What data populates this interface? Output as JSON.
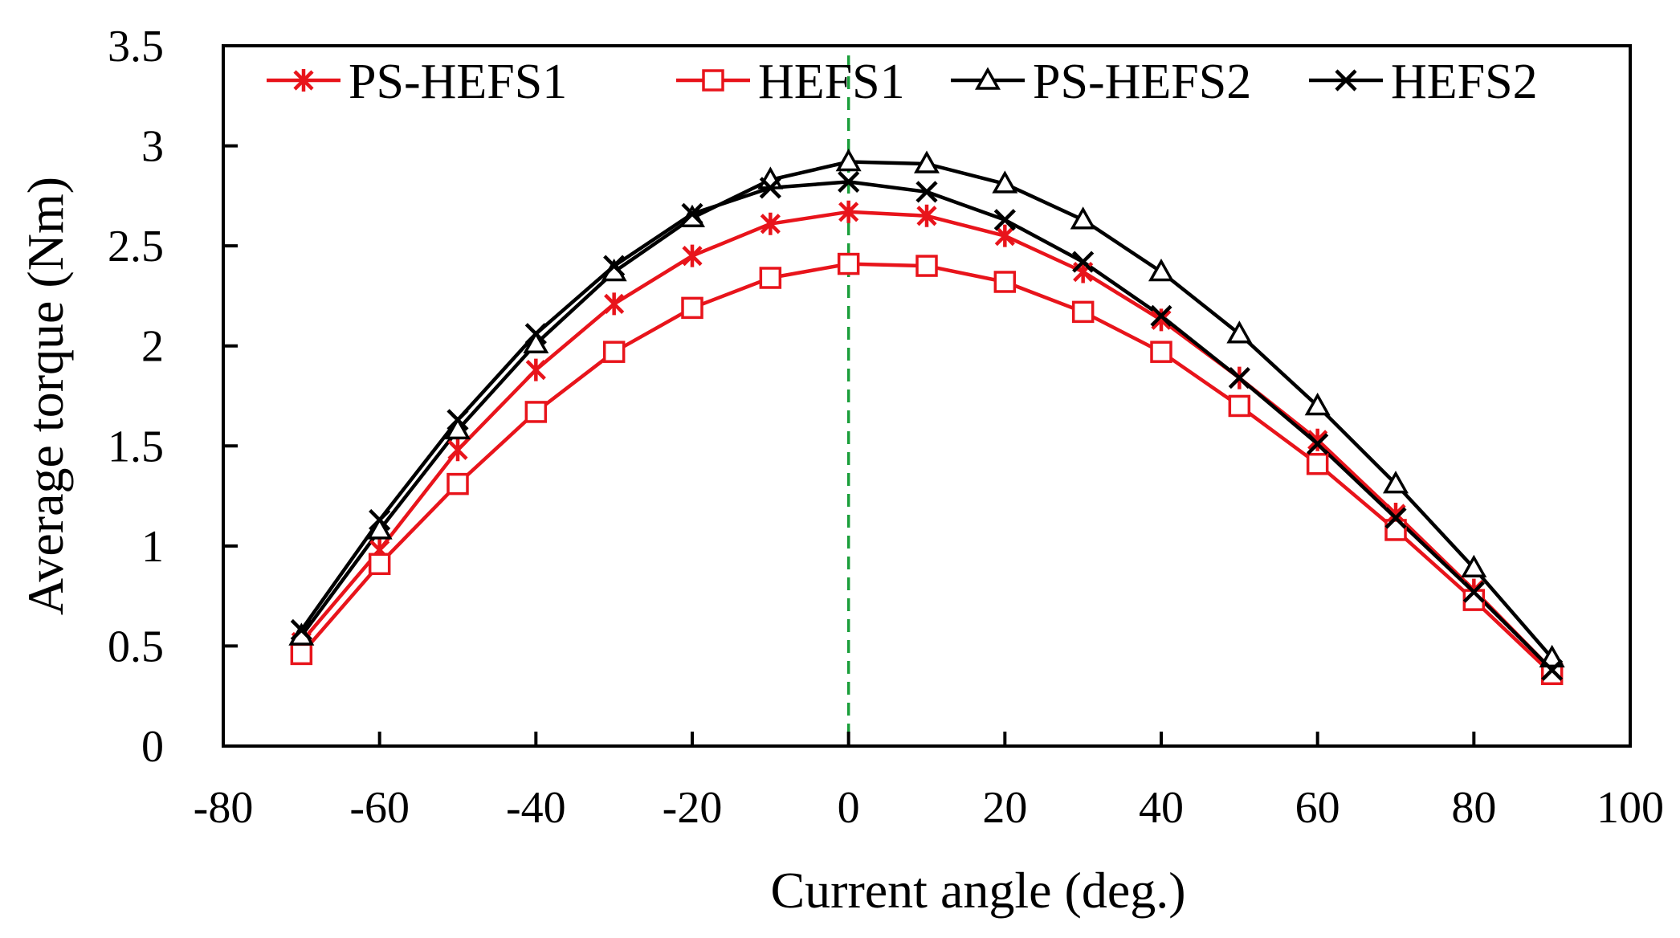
{
  "chart_data": {
    "type": "line",
    "title": "",
    "xlabel": "Current angle (deg.)",
    "ylabel": "Average torque (Nm)",
    "xlim": [
      -80,
      100
    ],
    "ylim": [
      0,
      3.5
    ],
    "x_ticks": [
      "-80",
      "-60",
      "-40",
      "-20",
      "0",
      "20",
      "40",
      "60",
      "80",
      "100"
    ],
    "y_ticks": [
      "0",
      "0.5",
      "1",
      "1.5",
      "2",
      "2.5",
      "3",
      "3.5"
    ],
    "grid": false,
    "legend_position": "top",
    "reference_line": {
      "x": 0,
      "style": "dashed",
      "color": "#1a9e3a"
    },
    "x": [
      -70,
      -60,
      -50,
      -40,
      -30,
      -20,
      -10,
      0,
      10,
      20,
      30,
      40,
      50,
      60,
      70,
      80,
      90
    ],
    "series": [
      {
        "name": "PS-HEFS1",
        "color": "#e8141b",
        "marker": "asterisk",
        "values": [
          0.52,
          0.98,
          1.48,
          1.88,
          2.21,
          2.45,
          2.61,
          2.67,
          2.65,
          2.55,
          2.37,
          2.13,
          1.84,
          1.53,
          1.16,
          0.78,
          0.38
        ]
      },
      {
        "name": "HEFS1",
        "color": "#e8141b",
        "marker": "square",
        "values": [
          0.46,
          0.91,
          1.31,
          1.67,
          1.97,
          2.19,
          2.34,
          2.41,
          2.4,
          2.32,
          2.17,
          1.97,
          1.7,
          1.41,
          1.08,
          0.73,
          0.36
        ]
      },
      {
        "name": "PS-HEFS2",
        "color": "#000000",
        "marker": "triangle",
        "values": [
          0.55,
          1.08,
          1.58,
          2.01,
          2.37,
          2.64,
          2.83,
          2.92,
          2.91,
          2.81,
          2.63,
          2.37,
          2.06,
          1.7,
          1.31,
          0.89,
          0.44
        ]
      },
      {
        "name": "HEFS2",
        "color": "#000000",
        "marker": "x",
        "values": [
          0.58,
          1.13,
          1.63,
          2.06,
          2.4,
          2.66,
          2.79,
          2.82,
          2.77,
          2.63,
          2.42,
          2.15,
          1.84,
          1.51,
          1.14,
          0.77,
          0.38
        ]
      }
    ]
  }
}
